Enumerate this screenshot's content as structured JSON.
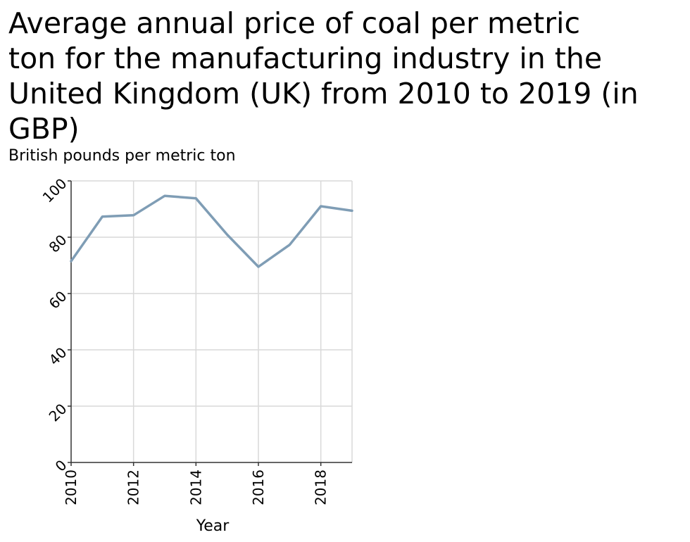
{
  "chart_data": {
    "type": "line",
    "title": "Average annual price of coal per metric\nton for the manufacturing industry in the\nUnited Kingdom (UK) from 2010 to 2019 (in\nGBP)",
    "xlabel": "Year",
    "ylabel": "British pounds per metric ton",
    "xlim": [
      2010,
      2019
    ],
    "ylim": [
      0,
      100
    ],
    "x_ticks": [
      2010,
      2012,
      2014,
      2016,
      2018
    ],
    "y_ticks": [
      0,
      20,
      40,
      60,
      80,
      100
    ],
    "grid": true,
    "series": [
      {
        "x": [
          2010,
          2011,
          2012,
          2013,
          2014,
          2015,
          2016,
          2017,
          2018,
          2019
        ],
        "values": [
          71.5,
          87.3,
          87.8,
          94.7,
          93.8,
          80.9,
          69.5,
          77.3,
          91.0,
          89.4
        ]
      }
    ],
    "line_color": "#7f9db5",
    "grid_color": "#d9d9d9"
  }
}
